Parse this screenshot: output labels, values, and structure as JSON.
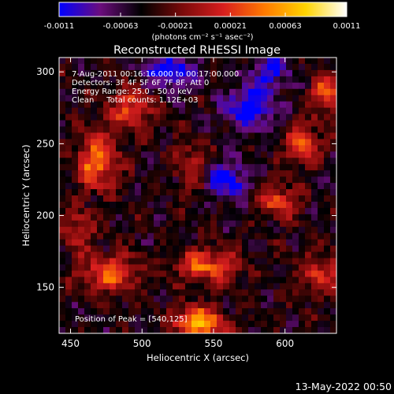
{
  "chart_data": {
    "type": "heatmap",
    "title": "Reconstructed RHESSI Image",
    "xlabel": "Heliocentric X (arcsec)",
    "ylabel": "Heliocentric Y (arcsec)",
    "xlim": [
      442,
      636
    ],
    "ylim": [
      118,
      310
    ],
    "x_ticks": [
      450,
      500,
      550,
      600
    ],
    "y_ticks": [
      150,
      200,
      250,
      300
    ],
    "colorbar": {
      "min": -0.0011,
      "max": 0.0011,
      "ticks": [
        "-0.0011",
        "-0.00063",
        "-0.00021",
        "0.00021",
        "0.00063",
        "0.0011"
      ],
      "label": "(photons cm⁻² s⁻¹ asec⁻²)",
      "colors": [
        "#0000ff",
        "#6b0d7d",
        "#000000",
        "#7a0a0a",
        "#d81e1e",
        "#ff7a00",
        "#ffd400",
        "#ffffff"
      ]
    },
    "annotations": [
      "7-Aug-2011 00:16:16.000 to 00:17:00.000",
      "Detectors: 3F 4F 5F 6F 7F 8F, Att 0",
      "Energy Range: 25.0 - 50.0 keV",
      "Clean     Total counts: 1.12E+03"
    ],
    "peak_label": "Position of Peak = [540,125]",
    "peak": [
      540,
      125
    ],
    "grid": false,
    "sources": [
      {
        "x": 540,
        "y": 125,
        "amp": 0.0011,
        "sx": 12,
        "sy": 8
      },
      {
        "x": 468,
        "y": 238,
        "amp": 0.0009,
        "sx": 10,
        "sy": 14
      },
      {
        "x": 492,
        "y": 275,
        "amp": 0.0007,
        "sx": 10,
        "sy": 10
      },
      {
        "x": 478,
        "y": 160,
        "amp": 0.0008,
        "sx": 14,
        "sy": 9
      },
      {
        "x": 545,
        "y": 165,
        "amp": 0.0008,
        "sx": 16,
        "sy": 8
      },
      {
        "x": 455,
        "y": 190,
        "amp": 0.0005,
        "sx": 8,
        "sy": 10
      },
      {
        "x": 630,
        "y": 285,
        "amp": 0.0008,
        "sx": 8,
        "sy": 10
      },
      {
        "x": 612,
        "y": 250,
        "amp": 0.0007,
        "sx": 9,
        "sy": 10
      },
      {
        "x": 595,
        "y": 210,
        "amp": 0.0007,
        "sx": 10,
        "sy": 8
      },
      {
        "x": 625,
        "y": 160,
        "amp": 0.0006,
        "sx": 10,
        "sy": 10
      },
      {
        "x": 535,
        "y": 235,
        "amp": 0.0005,
        "sx": 8,
        "sy": 12
      },
      {
        "x": 575,
        "y": 275,
        "amp": -0.0008,
        "sx": 12,
        "sy": 10
      },
      {
        "x": 520,
        "y": 300,
        "amp": -0.0007,
        "sx": 14,
        "sy": 8
      },
      {
        "x": 560,
        "y": 225,
        "amp": -0.0007,
        "sx": 10,
        "sy": 10
      },
      {
        "x": 590,
        "y": 300,
        "amp": -0.0006,
        "sx": 10,
        "sy": 8
      }
    ]
  },
  "footer": {
    "date": "13-May-2022 00:50"
  }
}
